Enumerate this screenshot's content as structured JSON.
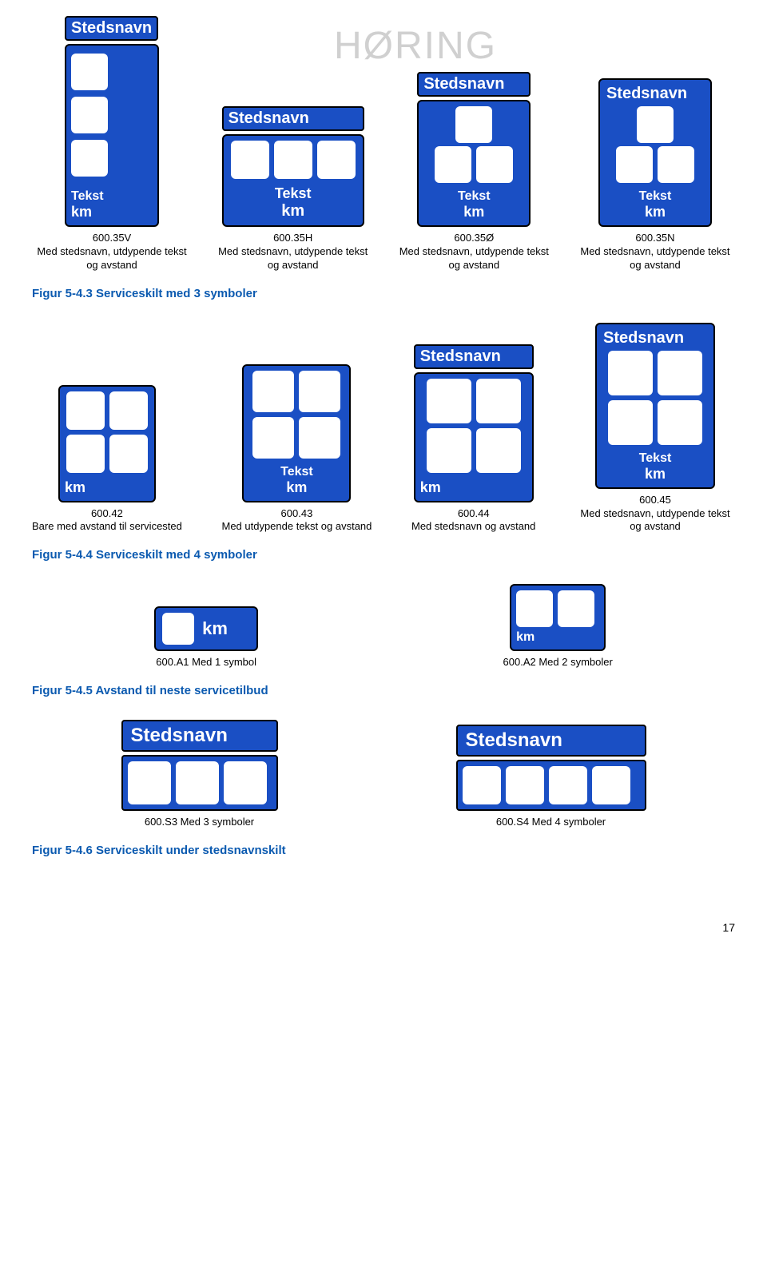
{
  "watermark": "HØRING",
  "labels": {
    "stedsnavn": "Stedsnavn",
    "tekst": "Tekst",
    "km": "km"
  },
  "row1": {
    "v": {
      "code": "600.35V",
      "desc": "Med stedsnavn, utdypende tekst og avstand"
    },
    "h": {
      "code": "600.35H",
      "desc": "Med stedsnavn, utdypende tekst og avstand"
    },
    "o": {
      "code": "600.35Ø",
      "desc": "Med stedsnavn, utdypende tekst og avstand"
    },
    "n": {
      "code": "600.35N",
      "desc": "Med stedsnavn, utdypende tekst og avstand"
    }
  },
  "fig53": "Figur 5-4.3 Serviceskilt med 3 symboler",
  "row2": {
    "c42": {
      "code": "600.42",
      "desc": "Bare med avstand til servicested"
    },
    "c43": {
      "code": "600.43",
      "desc": "Med utdypende tekst og avstand"
    },
    "c44": {
      "code": "600.44",
      "desc": "Med stedsnavn og avstand"
    },
    "c45": {
      "code": "600.45",
      "desc": "Med stedsnavn, utdypende tekst og avstand"
    }
  },
  "fig54": "Figur 5-4.4 Serviceskilt med 4 symboler",
  "rowA": {
    "a1": "600.A1 Med 1 symbol",
    "a2": "600.A2 Med 2 symboler"
  },
  "fig55": "Figur 5-4.5 Avstand til neste servicetilbud",
  "rowS": {
    "s3": "600.S3 Med 3 symboler",
    "s4": "600.S4 Med 4 symboler"
  },
  "fig56": "Figur 5-4.6 Serviceskilt under stedsnavnskilt",
  "pageNum": "17"
}
